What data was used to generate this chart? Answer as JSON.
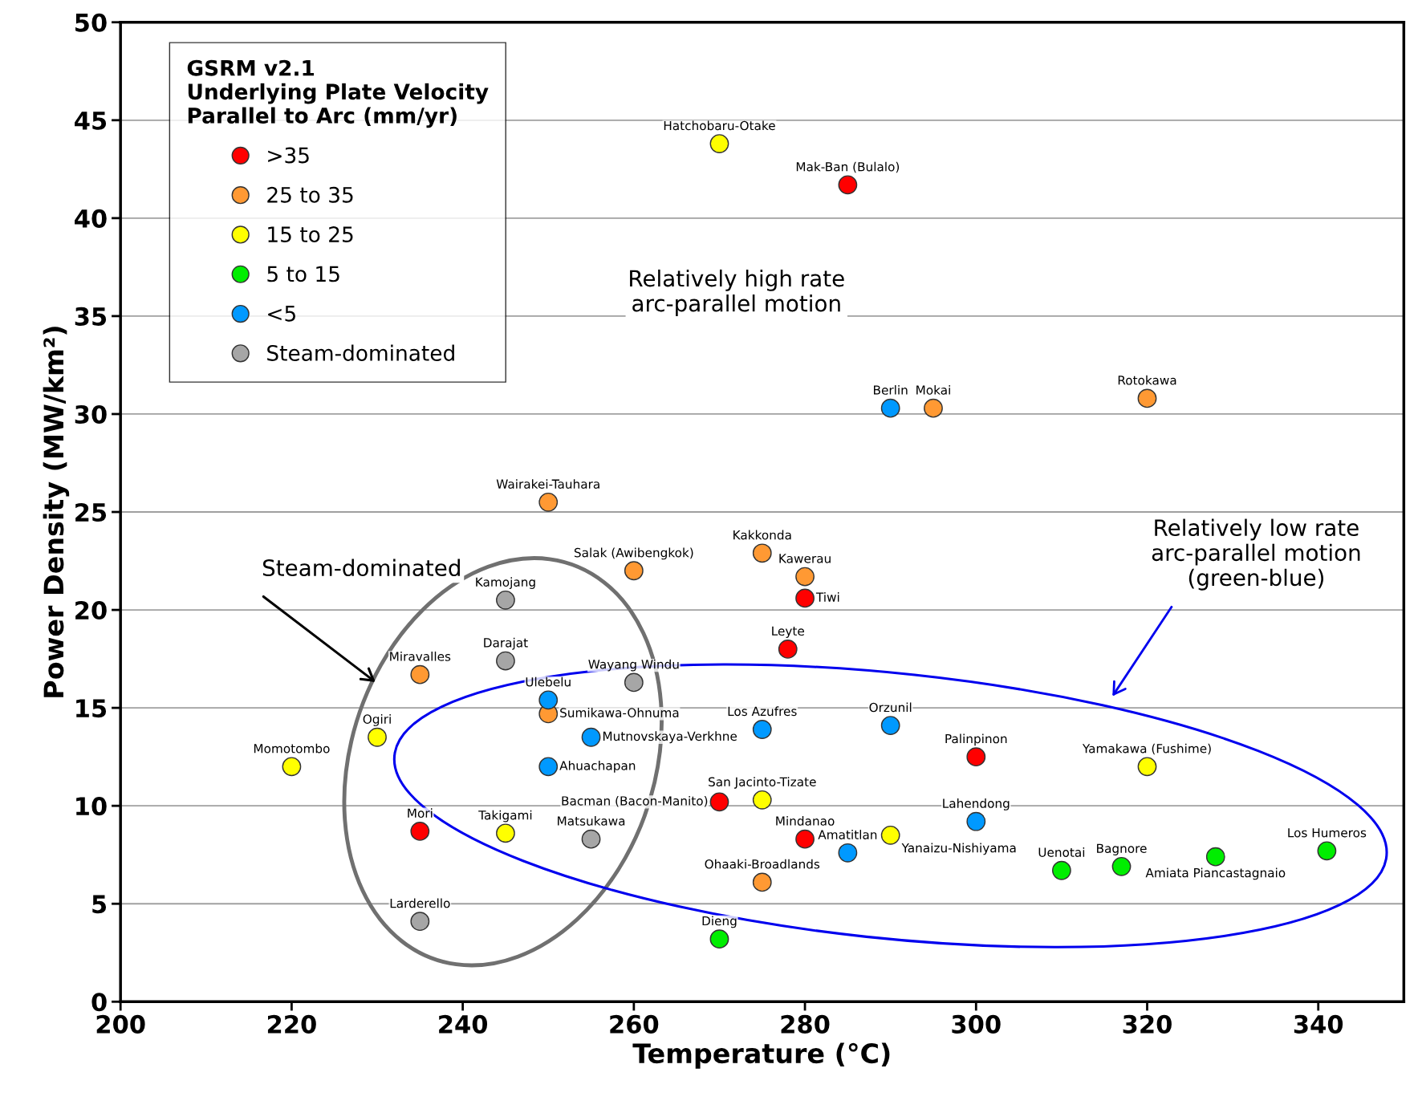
{
  "chart_data": {
    "type": "scatter",
    "xlabel": "Temperature (°C)",
    "ylabel": "Power Density (MW/km²)",
    "legend_title": "GSRM v2.1\nUnderlying Plate Velocity\nParallel to Arc (mm/yr)",
    "xlim": [
      200,
      350
    ],
    "xticks": [
      200,
      220,
      240,
      260,
      280,
      300,
      320,
      340
    ],
    "ylim": [
      0,
      50
    ],
    "yticks": [
      0,
      5,
      10,
      15,
      20,
      25,
      30,
      35,
      40,
      45,
      50
    ],
    "grid": "y",
    "legend": "top left",
    "marker": "circle",
    "series": [
      {
        "name": ">35",
        "color": "#ff0000",
        "x": [
          285,
          280,
          278,
          300,
          270,
          235,
          280
        ],
        "values": [
          41.7,
          20.6,
          18.0,
          12.5,
          10.2,
          8.7,
          8.3
        ]
      },
      {
        "name": "25 to 35",
        "color": "#ff9933",
        "x": [
          295,
          320,
          250,
          260,
          275,
          280,
          235,
          250,
          275
        ],
        "values": [
          30.3,
          30.8,
          25.5,
          22.0,
          22.9,
          21.7,
          16.7,
          14.7,
          6.1
        ]
      },
      {
        "name": "15 to 25",
        "color": "#ffff00",
        "x": [
          270,
          230,
          220,
          320,
          275,
          245,
          290
        ],
        "values": [
          43.8,
          13.5,
          12.0,
          12.0,
          10.3,
          8.6,
          8.5
        ]
      },
      {
        "name": "5 to 15",
        "color": "#00ee00",
        "x": [
          310,
          317,
          328,
          341,
          270
        ],
        "values": [
          6.7,
          6.9,
          7.4,
          7.7,
          3.2
        ]
      },
      {
        "name": "<5",
        "color": "#0099ff",
        "x": [
          290,
          250,
          255,
          250,
          275,
          290,
          300,
          285
        ],
        "values": [
          30.3,
          15.4,
          13.5,
          12.0,
          13.9,
          14.1,
          9.2,
          7.6
        ]
      },
      {
        "name": "Steam-dominated",
        "color": "#a6a6a6",
        "x": [
          245,
          245,
          260,
          255,
          235
        ],
        "values": [
          20.5,
          17.4,
          16.3,
          8.3,
          4.1
        ]
      }
    ],
    "annotations": [
      {
        "text": "Hatchobaru-Otake",
        "x": 270,
        "y": 43.8
      },
      {
        "text": "Mak-Ban (Bulalo)",
        "x": 285,
        "y": 41.7
      },
      {
        "text": "Berlin",
        "x": 290,
        "y": 30.3
      },
      {
        "text": "Mokai",
        "x": 295,
        "y": 30.3
      },
      {
        "text": "Rotokawa",
        "x": 320,
        "y": 30.8
      },
      {
        "text": "Wairakei-Tauhara",
        "x": 250,
        "y": 25.5
      },
      {
        "text": "Salak (Awibengkok)",
        "x": 260,
        "y": 22.0
      },
      {
        "text": "Kakkonda",
        "x": 275,
        "y": 22.9
      },
      {
        "text": "Kawerau",
        "x": 280,
        "y": 21.7
      },
      {
        "text": "Tiwi",
        "x": 280,
        "y": 20.6
      },
      {
        "text": "Kamojang",
        "x": 245,
        "y": 20.5
      },
      {
        "text": "Leyte",
        "x": 278,
        "y": 18.0
      },
      {
        "text": "Darajat",
        "x": 245,
        "y": 17.4
      },
      {
        "text": "Miravalles",
        "x": 235,
        "y": 16.7
      },
      {
        "text": "Wayang Windu",
        "x": 260,
        "y": 16.3
      },
      {
        "text": "Ulebelu",
        "x": 250,
        "y": 15.4
      },
      {
        "text": "Sumikawa-Ohnuma",
        "x": 250,
        "y": 14.7
      },
      {
        "text": "Mutnovskaya-Verkhne",
        "x": 255,
        "y": 13.5
      },
      {
        "text": "Ahuachapan",
        "x": 250,
        "y": 12.0
      },
      {
        "text": "Ogiri",
        "x": 230,
        "y": 13.5
      },
      {
        "text": "Momotombo",
        "x": 220,
        "y": 12.0
      },
      {
        "text": "Los Azufres",
        "x": 275,
        "y": 13.9
      },
      {
        "text": "Orzunil",
        "x": 290,
        "y": 14.1
      },
      {
        "text": "Palinpinon",
        "x": 300,
        "y": 12.5
      },
      {
        "text": "Yamakawa (Fushime)",
        "x": 320,
        "y": 12.0
      },
      {
        "text": "Bacman (Bacon-Manito)",
        "x": 270,
        "y": 10.2
      },
      {
        "text": "San Jacinto-Tizate",
        "x": 275,
        "y": 10.3
      },
      {
        "text": "Lahendong",
        "x": 300,
        "y": 9.2
      },
      {
        "text": "Mori",
        "x": 235,
        "y": 8.7
      },
      {
        "text": "Takigami",
        "x": 245,
        "y": 8.6
      },
      {
        "text": "Matsukawa",
        "x": 255,
        "y": 8.3
      },
      {
        "text": "Mindanao",
        "x": 280,
        "y": 8.3
      },
      {
        "text": "Yanaizu-Nishiyama",
        "x": 290,
        "y": 8.5
      },
      {
        "text": "Amatitlan",
        "x": 285,
        "y": 7.6
      },
      {
        "text": "Ohaaki-Broadlands",
        "x": 275,
        "y": 6.1
      },
      {
        "text": "Uenotai",
        "x": 310,
        "y": 6.7
      },
      {
        "text": "Bagnore",
        "x": 317,
        "y": 6.9
      },
      {
        "text": "Amiata Piancastagnaio",
        "x": 328,
        "y": 7.4
      },
      {
        "text": "Los Humeros",
        "x": 341,
        "y": 7.7
      },
      {
        "text": "Dieng",
        "x": 270,
        "y": 3.2
      },
      {
        "text": "Larderello",
        "x": 235,
        "y": 4.1
      },
      "Steam-dominated",
      "Relatively high rate\narc-parallel motion",
      "Relatively low rate\narc-parallel motion\n(green-blue)"
    ]
  }
}
